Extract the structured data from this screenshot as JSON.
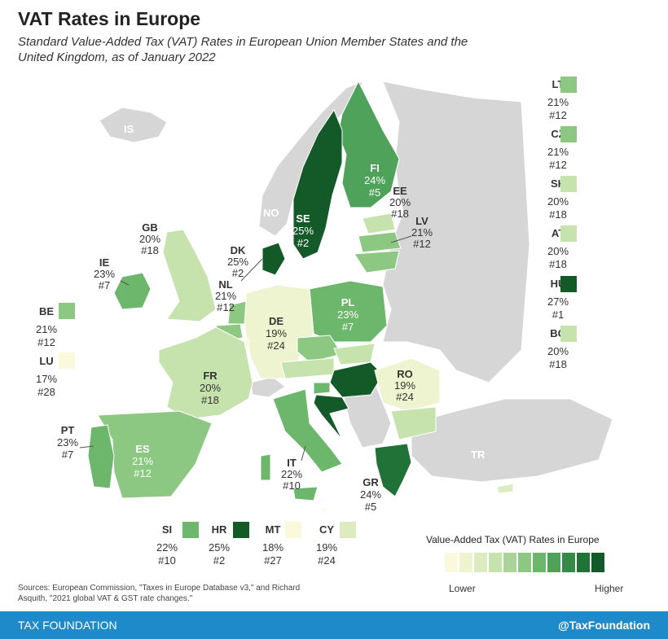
{
  "title": "VAT Rates in Europe",
  "subtitle": "Standard Value-Added Tax (VAT) Rates in European Union Member States and the United Kingdom, as of January 2022",
  "source": "Sources: European Commission, \"Taxes in Europe Database v3,\" and Richard Asquith, \"2021 global VAT & GST rate changes.\"",
  "legend": {
    "title": "Value-Added Tax (VAT) Rates in Europe",
    "low_label": "Lower",
    "high_label": "Higher",
    "colors": [
      "#fbf9dc",
      "#eef4cf",
      "#dcecc0",
      "#c6e2ad",
      "#a9d698",
      "#8cc882",
      "#6cb76c",
      "#4fa25a",
      "#358a48",
      "#217237",
      "#145a29"
    ]
  },
  "footer": {
    "org": "TAX FOUNDATION",
    "handle": "@TaxFoundation"
  },
  "non_eu_labels": {
    "is": "IS",
    "no": "NO",
    "tr": "TR"
  },
  "chart_data": {
    "type": "choropleth",
    "countries": [
      {
        "code": "LT",
        "rate": "21%",
        "rank": "#12"
      },
      {
        "code": "CZ",
        "rate": "21%",
        "rank": "#12"
      },
      {
        "code": "SK",
        "rate": "20%",
        "rank": "#18"
      },
      {
        "code": "AT",
        "rate": "20%",
        "rank": "#18"
      },
      {
        "code": "HU",
        "rate": "27%",
        "rank": "#1"
      },
      {
        "code": "BG",
        "rate": "20%",
        "rank": "#18"
      },
      {
        "code": "BE",
        "rate": "21%",
        "rank": "#12"
      },
      {
        "code": "LU",
        "rate": "17%",
        "rank": "#28"
      },
      {
        "code": "SI",
        "rate": "22%",
        "rank": "#10"
      },
      {
        "code": "HR",
        "rate": "25%",
        "rank": "#2"
      },
      {
        "code": "MT",
        "rate": "18%",
        "rank": "#27"
      },
      {
        "code": "CY",
        "rate": "19%",
        "rank": "#24"
      },
      {
        "code": "GB",
        "rate": "20%",
        "rank": "#18"
      },
      {
        "code": "IE",
        "rate": "23%",
        "rank": "#7"
      },
      {
        "code": "DK",
        "rate": "25%",
        "rank": "#2"
      },
      {
        "code": "NL",
        "rate": "21%",
        "rank": "#12"
      },
      {
        "code": "DE",
        "rate": "19%",
        "rank": "#24"
      },
      {
        "code": "FR",
        "rate": "20%",
        "rank": "#18"
      },
      {
        "code": "PT",
        "rate": "23%",
        "rank": "#7"
      },
      {
        "code": "ES",
        "rate": "21%",
        "rank": "#12"
      },
      {
        "code": "IT",
        "rate": "22%",
        "rank": "#10"
      },
      {
        "code": "SE",
        "rate": "25%",
        "rank": "#2"
      },
      {
        "code": "FI",
        "rate": "24%",
        "rank": "#5"
      },
      {
        "code": "EE",
        "rate": "20%",
        "rank": "#18"
      },
      {
        "code": "LV",
        "rate": "21%",
        "rank": "#12"
      },
      {
        "code": "PL",
        "rate": "23%",
        "rank": "#7"
      },
      {
        "code": "RO",
        "rate": "19%",
        "rank": "#24"
      },
      {
        "code": "GR",
        "rate": "24%",
        "rank": "#5"
      }
    ]
  }
}
